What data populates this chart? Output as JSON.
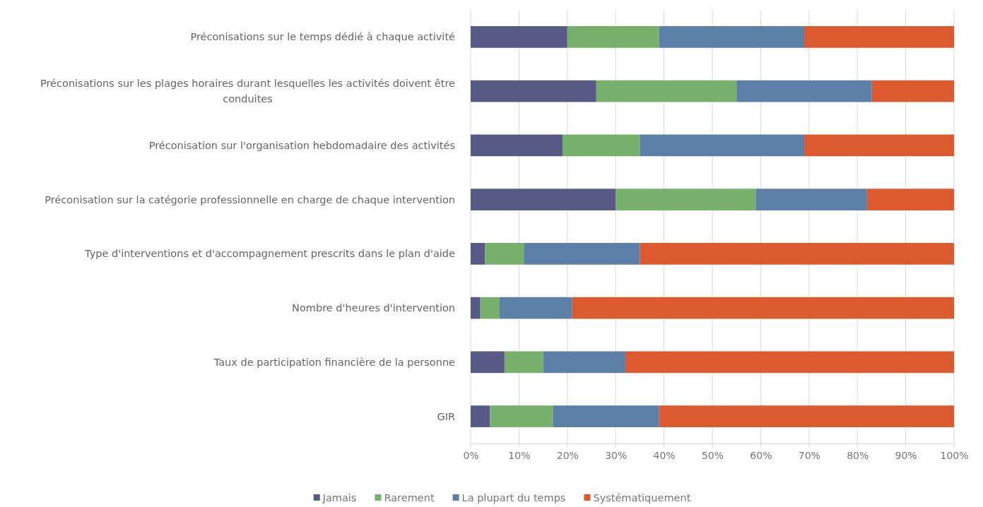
{
  "chart_data": {
    "type": "bar",
    "orientation": "horizontal",
    "stacked": true,
    "categories": [
      "Préconisations sur le temps dédié à chaque activité",
      "Préconisations sur les plages horaires durant lesquelles les activités doivent être conduites",
      "Préconisation sur l'organisation hebdomadaire des activités",
      "Préconisation sur la catégorie professionnelle en charge de chaque intervention",
      "Type d'interventions et d'accompagnement prescrits dans le plan d'aide",
      "Nombre d'heures d'intervention",
      "Taux de participation financière de la personne",
      "GIR"
    ],
    "series": [
      {
        "name": "Jamais",
        "color": "#575a84",
        "values": [
          20,
          26,
          19,
          30,
          3,
          2,
          7,
          4
        ]
      },
      {
        "name": "Rarement",
        "color": "#76b06b",
        "values": [
          19,
          29,
          16,
          29,
          8,
          4,
          8,
          13
        ]
      },
      {
        "name": "La plupart du temps",
        "color": "#5b7fa6",
        "values": [
          30,
          28,
          34,
          23,
          24,
          15,
          17,
          22
        ]
      },
      {
        "name": "Systématiquement",
        "color": "#dd5a30",
        "values": [
          31,
          17,
          31,
          18,
          65,
          79,
          68,
          61
        ]
      }
    ],
    "xlim": [
      0,
      100
    ],
    "xticks": [
      {
        "value": 0,
        "label": "0%"
      },
      {
        "value": 10,
        "label": "10%"
      },
      {
        "value": 20,
        "label": "20%"
      },
      {
        "value": 30,
        "label": "30%"
      },
      {
        "value": 40,
        "label": "40%"
      },
      {
        "value": 50,
        "label": "50%"
      },
      {
        "value": 60,
        "label": "60%"
      },
      {
        "value": 70,
        "label": "70%"
      },
      {
        "value": 80,
        "label": "80%"
      },
      {
        "value": 90,
        "label": "90%"
      },
      {
        "value": 100,
        "label": "100%"
      }
    ],
    "grid": "x",
    "legend": "bottom"
  }
}
